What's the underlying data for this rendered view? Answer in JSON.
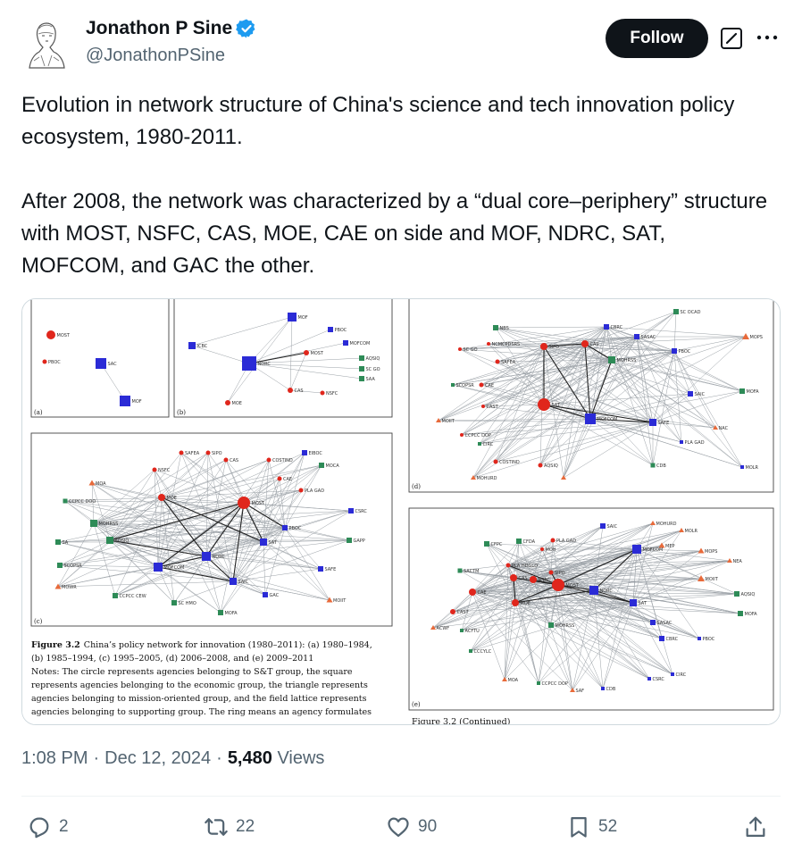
{
  "author": {
    "display_name": "Jonathon P Sine",
    "handle": "@JonathonPSine",
    "verified": true,
    "avatar_icon": "portrait-engraving-avatar"
  },
  "header": {
    "follow_label": "Follow",
    "grok_icon": "grok-icon",
    "more_icon": "more-icon"
  },
  "tweet": {
    "paragraph1": "Evolution in network structure of China's science and tech innovation policy ecosystem, 1980-2011.",
    "paragraph2": "After 2008, the network was characterized by a “dual core–periphery” structure with MOST, NSFC, CAS, MOE, CAE on side and MOF, NDRC, SAT, MOFCOM, and GAC the other."
  },
  "figure": {
    "caption_title": "Figure 3.2",
    "caption_line1": "China’s policy network for innovation (1980–2011): (a) 1980–1984,",
    "caption_line2": "(b) 1985–1994, (c) 1995–2005, (d) 2006–2008, and (e) 2009–2011",
    "caption_line3": "Notes: The circle represents agencies belonging to S&T group, the square",
    "caption_line4": "represents agencies belonging to the economic group, the triangle represents",
    "caption_line5": "agencies belonging to mission-oriented group, and the field lattice represents",
    "caption_line6": "agencies belonging to supporting group. The ring means an agency formulates",
    "continued": "Figure 3.2 (Continued)",
    "panel_labels": [
      "(a)",
      "(b)",
      "(c)",
      "(d)",
      "(e)"
    ],
    "panel_a_nodes": [
      "MOST",
      "PBOC",
      "SAC",
      "MOF"
    ],
    "panel_b_nodes": [
      "MOF",
      "PBOC",
      "ICBC",
      "MOFCOM",
      "NDRC",
      "MOST",
      "AQSIQ",
      "SC GO",
      "SAA",
      "CAS",
      "NSFC",
      "MOE"
    ],
    "panel_c_nodes": [
      "SAFEA",
      "SIPO",
      "CAS",
      "COSTIND",
      "EIBOC",
      "NSFC",
      "MOCA",
      "MOA",
      "CAE",
      "PLA GAD",
      "CCPCC DOO",
      "MOE",
      "MOST",
      "CSRC",
      "MOHRSS",
      "PBOC",
      "SA",
      "AQSIQ",
      "SAT",
      "GAPP",
      "SCOPSR",
      "NDRC",
      "MOFCOM",
      "SAFE",
      "SAIC",
      "MOWR",
      "CCPCC CEW",
      "GAC",
      "MOIIT",
      "SC HMO",
      "MOFA"
    ],
    "panel_d_nodes": [
      "SC OCAD",
      "NBS",
      "CBRC",
      "MOPS",
      "NCMCPDSRS",
      "SASAC",
      "SC GO",
      "SIPO",
      "CAS",
      "PBOC",
      "SAFEA",
      "MOHRSS",
      "SCOPSR",
      "CAE",
      "MOFA",
      "SAIC",
      "CAST",
      "SAT",
      "MOIIT",
      "MOFCOM",
      "SAFE",
      "NAC",
      "CCPCC DOP",
      "CIRC",
      "PLA GAD",
      "COSTIND",
      "AQSIQ",
      "CDB",
      "MOLR",
      "MOHURD"
    ],
    "panel_e_nodes": [
      "SAIC",
      "MOHURD",
      "MOLR",
      "CFPC",
      "CFDA",
      "PLA GAD",
      "MOH",
      "MOFCOM",
      "MEP",
      "MOPS",
      "NEA",
      "SACTM",
      "PLA HDGLD",
      "SIPO",
      "MOIIT",
      "CAS",
      "NSFC",
      "MOST",
      "CAE",
      "MOE",
      "NDRC",
      "AQSIQ",
      "CAST",
      "SAT",
      "MOFA",
      "ACWF",
      "ACFTU",
      "MOHRSS",
      "SASAC",
      "CBRC",
      "PBOC",
      "CCCYLC",
      "MOA",
      "CCPCC DOP",
      "SAF",
      "CDB",
      "CSRC",
      "CIRC"
    ]
  },
  "meta": {
    "time": "1:08 PM",
    "separator": "·",
    "date": "Dec 12, 2024",
    "views_count": "5,480",
    "views_label": "Views"
  },
  "actions": {
    "replies": "2",
    "reposts": "22",
    "likes": "90",
    "bookmarks": "52"
  },
  "colors": {
    "text_primary": "#0f1419",
    "text_secondary": "#536471",
    "verified_blue": "#1d9bf0",
    "st_group_red": "#e0261c",
    "economic_group_blue": "#2b2bd6",
    "mission_group_orange": "#e86a3a",
    "support_group_green": "#2e8b57"
  }
}
